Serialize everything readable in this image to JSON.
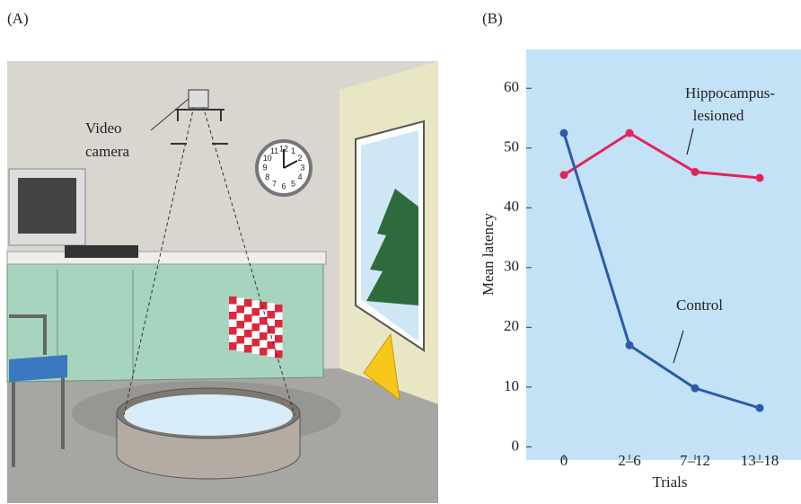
{
  "panels": {
    "a": "(A)",
    "b": "(B)"
  },
  "illustration": {
    "camera_label": [
      "Video",
      "camera"
    ],
    "clock_numbers": [
      "12",
      "1",
      "2",
      "3",
      "4",
      "5",
      "6",
      "7",
      "8",
      "9",
      "10",
      "11"
    ]
  },
  "chart_data": {
    "type": "line",
    "ylabel": "Mean latency",
    "xlabel": "Trials",
    "categories": [
      "0",
      "2–6",
      "7–12",
      "13–18"
    ],
    "series": [
      {
        "name": [
          "Hippocampus-",
          "lesioned"
        ],
        "color": "#e2245c",
        "values": [
          45.5,
          52.5,
          46,
          45
        ]
      },
      {
        "name": [
          "Control"
        ],
        "color": "#2a5ba8",
        "values": [
          52.5,
          17,
          9.8,
          6.5
        ]
      }
    ],
    "ylim": [
      -2.2,
      66.5
    ],
    "yticks": [
      0,
      10,
      20,
      30,
      40,
      50,
      60
    ],
    "background": "#c4e2f6"
  }
}
